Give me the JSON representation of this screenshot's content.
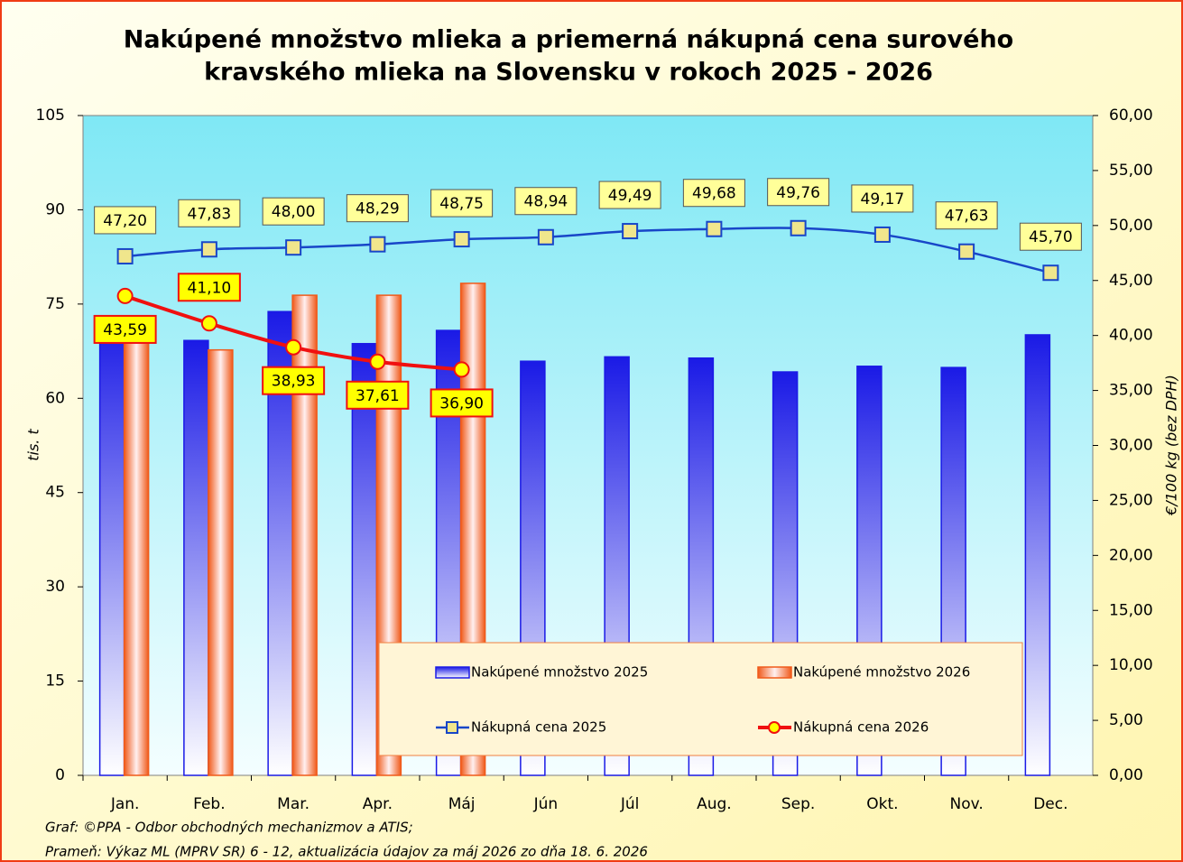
{
  "chart_data": {
    "type": "bar-line",
    "title": [
      "Nakúpené množstvo mlieka a priemerná nákupná cena surového",
      "kravského mlieka na Slovensku v rokoch 2025 - 2026"
    ],
    "ylabel": "tis. t",
    "y2label": "€/100 kg (bez DPH)",
    "categories": [
      "Jan.",
      "Feb.",
      "Mar.",
      "Apr.",
      "Máj",
      "Jún",
      "Júl",
      "Aug.",
      "Sep.",
      "Okt.",
      "Nov.",
      "Dec."
    ],
    "ylim": [
      0,
      105
    ],
    "yticks": [
      0,
      15,
      30,
      45,
      60,
      75,
      90,
      105
    ],
    "y2lim": [
      0,
      60
    ],
    "y2ticks": [
      {
        "value": 0,
        "label": "0,00"
      },
      {
        "value": 5,
        "label": "5,00"
      },
      {
        "value": 10,
        "label": "10,00"
      },
      {
        "value": 15,
        "label": "15,00"
      },
      {
        "value": 20,
        "label": "20,00"
      },
      {
        "value": 25,
        "label": "25,00"
      },
      {
        "value": 30,
        "label": "30,00"
      },
      {
        "value": 35,
        "label": "35,00"
      },
      {
        "value": 40,
        "label": "40,00"
      },
      {
        "value": 45,
        "label": "45,00"
      },
      {
        "value": 50,
        "label": "50,00"
      },
      {
        "value": 55,
        "label": "55,00"
      },
      {
        "value": 60,
        "label": "60,00"
      }
    ],
    "series": [
      {
        "name": "Nakúpené množstvo 2025",
        "kind": "bar",
        "color": "#1a1ae6",
        "values": [
          73,
          69.2,
          73.8,
          68.7,
          70.8,
          65.9,
          66.6,
          66.4,
          64.2,
          65.1,
          64.9,
          70.1
        ]
      },
      {
        "name": "Nakúpené množstvo 2026",
        "kind": "bar",
        "color": "#f05a1a",
        "values": [
          71,
          67.7,
          76.4,
          76.4,
          78.3,
          null,
          null,
          null,
          null,
          null,
          null,
          null
        ]
      },
      {
        "name": "Nákupná cena 2025",
        "kind": "line",
        "axis": "y2",
        "color": "#1846c8",
        "marker_fill": "#f0e68c",
        "values": [
          47.2,
          47.83,
          48.0,
          48.29,
          48.75,
          48.94,
          49.49,
          49.68,
          49.76,
          49.17,
          47.63,
          45.7
        ],
        "value_labels": [
          "47,20",
          "47,83",
          "48,00",
          "48,29",
          "48,75",
          "48,94",
          "49,49",
          "49,68",
          "49,76",
          "49,17",
          "47,63",
          "45,70"
        ]
      },
      {
        "name": "Nákupná cena 2026",
        "kind": "line",
        "axis": "y2",
        "color": "#f01010",
        "marker_fill": "#ffff00",
        "values": [
          43.59,
          41.1,
          38.93,
          37.61,
          36.9,
          null,
          null,
          null,
          null,
          null,
          null,
          null
        ],
        "value_labels": [
          "43,59",
          "41,10",
          "38,93",
          "37,61",
          "36,90",
          null,
          null,
          null,
          null,
          null,
          null,
          null
        ]
      }
    ],
    "notes": [
      "Graf: ©PPA - Odbor obchodných mechanizmov a ATIS;",
      "Prameň: Výkaz ML (MPRV SR) 6 - 12, aktualizácia údajov za máj 2026 zo dňa 18. 6. 2026"
    ]
  }
}
